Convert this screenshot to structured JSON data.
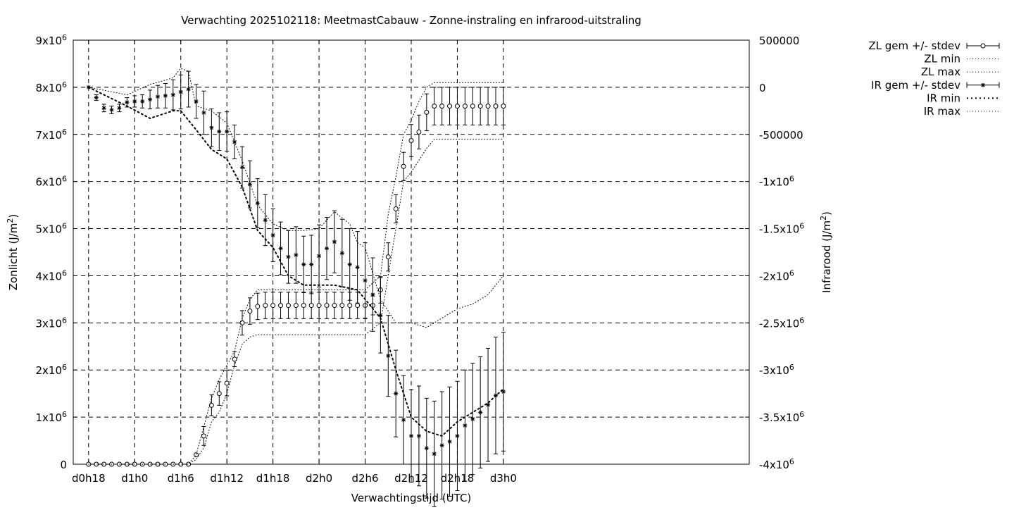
{
  "chart_data": {
    "type": "line",
    "title": "Verwachting 2025102118: MeetmastCabauw - Zonne-instraling en infrarood-uitstraling",
    "xlabel": "Verwachtingstijd (UTC)",
    "ylabel": "Zonlicht (J/m²)",
    "y2label": "Infrarood (J/m²)",
    "x_unit": "hours since d0h18",
    "xlim": [
      -2,
      86
    ],
    "ylim": [
      0,
      9000000
    ],
    "y2lim": [
      -4000000,
      500000
    ],
    "grid": true,
    "legend_position": "outside-right",
    "x_ticks": [
      {
        "v": 0,
        "label": "d0h18"
      },
      {
        "v": 6,
        "label": "d1h0"
      },
      {
        "v": 12,
        "label": "d1h6"
      },
      {
        "v": 18,
        "label": "d1h12"
      },
      {
        "v": 24,
        "label": "d1h18"
      },
      {
        "v": 30,
        "label": "d2h0"
      },
      {
        "v": 36,
        "label": "d2h6"
      },
      {
        "v": 42,
        "label": "d2h12"
      },
      {
        "v": 48,
        "label": "d2h18"
      },
      {
        "v": 54,
        "label": "d3h0"
      }
    ],
    "y_ticks": [
      {
        "v": 0,
        "base": "0",
        "exp": ""
      },
      {
        "v": 1000000,
        "base": "1x10",
        "exp": "6"
      },
      {
        "v": 2000000,
        "base": "2x10",
        "exp": "6"
      },
      {
        "v": 3000000,
        "base": "3x10",
        "exp": "6"
      },
      {
        "v": 4000000,
        "base": "4x10",
        "exp": "6"
      },
      {
        "v": 5000000,
        "base": "5x10",
        "exp": "6"
      },
      {
        "v": 6000000,
        "base": "6x10",
        "exp": "6"
      },
      {
        "v": 7000000,
        "base": "7x10",
        "exp": "6"
      },
      {
        "v": 8000000,
        "base": "8x10",
        "exp": "6"
      },
      {
        "v": 9000000,
        "base": "9x10",
        "exp": "6"
      }
    ],
    "y2_ticks": [
      {
        "v": 500000,
        "base": "500000",
        "exp": ""
      },
      {
        "v": 0,
        "base": "0",
        "exp": ""
      },
      {
        "v": -500000,
        "base": "-500000",
        "exp": ""
      },
      {
        "v": -1000000,
        "base": "-1x10",
        "exp": "6"
      },
      {
        "v": -1500000,
        "base": "-1.5x10",
        "exp": "6"
      },
      {
        "v": -2000000,
        "base": "-2x10",
        "exp": "6"
      },
      {
        "v": -2500000,
        "base": "-2.5x10",
        "exp": "6"
      },
      {
        "v": -3000000,
        "base": "-3x10",
        "exp": "6"
      },
      {
        "v": -3500000,
        "base": "-3.5x10",
        "exp": "6"
      },
      {
        "v": -4000000,
        "base": "-4x10",
        "exp": "6"
      }
    ],
    "legend": [
      {
        "label": "ZL gem +/- stdev",
        "kind": "errbar-circle"
      },
      {
        "label": "ZL min",
        "kind": "dotted-fine"
      },
      {
        "label": "ZL max",
        "kind": "dotted-fine"
      },
      {
        "label": "IR gem +/- stdev",
        "kind": "errbar-star"
      },
      {
        "label": "IR min",
        "kind": "dotted-coarse"
      },
      {
        "label": "IR max",
        "kind": "dotted-fine"
      }
    ],
    "series": [
      {
        "name": "ZL gem +/- stdev",
        "axis": "y",
        "x": [
          0,
          1,
          2,
          3,
          4,
          5,
          6,
          7,
          8,
          9,
          10,
          11,
          12,
          13,
          14,
          15,
          16,
          17,
          18,
          19,
          20,
          21,
          22,
          23,
          24,
          25,
          26,
          27,
          28,
          29,
          30,
          31,
          32,
          33,
          34,
          35,
          36,
          37,
          38,
          39,
          40,
          41,
          42,
          43,
          44,
          45,
          46,
          47,
          48,
          49,
          50,
          51,
          52,
          53,
          54
        ],
        "y": [
          0,
          0,
          0,
          0,
          0,
          0,
          0,
          0,
          0,
          0,
          0,
          0,
          0,
          0,
          200000,
          600000,
          1250000,
          1500000,
          1720000,
          2230000,
          3000000,
          3250000,
          3350000,
          3370000,
          3370000,
          3370000,
          3370000,
          3370000,
          3370000,
          3370000,
          3370000,
          3370000,
          3370000,
          3370000,
          3370000,
          3370000,
          3370000,
          3370000,
          3700000,
          4400000,
          5420000,
          6320000,
          6870000,
          7050000,
          7470000,
          7600000,
          7600000,
          7600000,
          7600000,
          7600000,
          7600000,
          7600000,
          7600000,
          7600000,
          7600000
        ],
        "err": [
          0,
          0,
          0,
          0,
          0,
          0,
          0,
          0,
          0,
          0,
          0,
          0,
          0,
          0,
          0,
          200000,
          220000,
          250000,
          270000,
          160000,
          260000,
          280000,
          280000,
          280000,
          280000,
          280000,
          280000,
          280000,
          280000,
          280000,
          280000,
          280000,
          280000,
          280000,
          280000,
          280000,
          280000,
          200000,
          280000,
          300000,
          300000,
          300000,
          340000,
          360000,
          390000,
          400000,
          400000,
          400000,
          400000,
          400000,
          400000,
          400000,
          400000,
          400000,
          400000
        ]
      },
      {
        "name": "ZL min",
        "axis": "y",
        "x": [
          0,
          13,
          14,
          15,
          16,
          17,
          18,
          19,
          20,
          21,
          22,
          24,
          30,
          36,
          38,
          41,
          42,
          43,
          44,
          45,
          46,
          48,
          50,
          52,
          54
        ],
        "y": [
          0,
          0,
          100000,
          350000,
          900000,
          1100000,
          1500000,
          2100000,
          2550000,
          2700000,
          2750000,
          2750000,
          2750000,
          2750000,
          3000000,
          6000000,
          6200000,
          6450000,
          6700000,
          6900000,
          6900000,
          6900000,
          6900000,
          6900000,
          6900000
        ]
      },
      {
        "name": "ZL max",
        "axis": "y",
        "x": [
          0,
          13,
          14,
          15,
          16,
          17,
          18,
          19,
          20,
          21,
          22,
          23,
          24,
          30,
          36,
          38,
          39,
          40,
          41,
          42,
          43,
          44,
          45,
          46,
          48,
          50,
          52,
          54
        ],
        "y": [
          0,
          0,
          200000,
          800000,
          1400000,
          1800000,
          2100000,
          2400000,
          3100000,
          3500000,
          3700000,
          3700000,
          3700000,
          3700000,
          3700000,
          4000000,
          5300000,
          6100000,
          7000000,
          7300000,
          7700000,
          8000000,
          8100000,
          8100000,
          8100000,
          8100000,
          8100000,
          8100000
        ]
      },
      {
        "name": "IR gem +/- stdev",
        "axis": "y2",
        "x": [
          0,
          1,
          2,
          3,
          4,
          5,
          6,
          7,
          8,
          9,
          10,
          11,
          12,
          13,
          14,
          15,
          16,
          17,
          18,
          19,
          20,
          21,
          22,
          23,
          24,
          25,
          26,
          27,
          28,
          29,
          30,
          31,
          32,
          33,
          34,
          35,
          36,
          37,
          38,
          39,
          40,
          41,
          42,
          43,
          44,
          45,
          46,
          47,
          48,
          49,
          50,
          51,
          52,
          53,
          54
        ],
        "y": [
          0,
          -110000,
          -220000,
          -240000,
          -220000,
          -160000,
          -150000,
          -150000,
          -130000,
          -100000,
          -90000,
          -80000,
          -50000,
          -20000,
          -150000,
          -270000,
          -430000,
          -470000,
          -470000,
          -580000,
          -850000,
          -1030000,
          -1230000,
          -1410000,
          -1570000,
          -1710000,
          -1800000,
          -1780000,
          -1880000,
          -1880000,
          -1790000,
          -1710000,
          -1640000,
          -1760000,
          -1880000,
          -1910000,
          -2050000,
          -2200000,
          -2420000,
          -2850000,
          -3250000,
          -3530000,
          -3700000,
          -3700000,
          -3830000,
          -3890000,
          -3800000,
          -3760000,
          -3700000,
          -3590000,
          -3520000,
          -3450000,
          -3370000,
          -3270000,
          -3230000
        ],
        "err": [
          0,
          30000,
          40000,
          40000,
          40000,
          50000,
          60000,
          70000,
          100000,
          120000,
          130000,
          160000,
          180000,
          190000,
          180000,
          230000,
          200000,
          200000,
          210000,
          180000,
          220000,
          250000,
          260000,
          270000,
          280000,
          280000,
          280000,
          300000,
          300000,
          310000,
          330000,
          330000,
          330000,
          360000,
          380000,
          380000,
          400000,
          390000,
          400000,
          430000,
          460000,
          470000,
          490000,
          530000,
          530000,
          560000,
          570000,
          580000,
          580000,
          590000,
          590000,
          590000,
          600000,
          620000,
          630000
        ]
      },
      {
        "name": "IR min",
        "axis": "y2",
        "x": [
          0,
          5,
          8,
          11,
          12,
          14,
          16,
          18,
          20,
          22,
          24,
          26,
          28,
          30,
          32,
          35,
          38,
          40,
          42,
          44,
          46,
          48,
          50,
          52,
          54
        ],
        "y": [
          0,
          -200000,
          -330000,
          -250000,
          -250000,
          -450000,
          -660000,
          -760000,
          -1060000,
          -1520000,
          -1700000,
          -2000000,
          -2100000,
          -2100000,
          -2100000,
          -2150000,
          -2450000,
          -3000000,
          -3500000,
          -3650000,
          -3700000,
          -3550000,
          -3450000,
          -3350000,
          -3200000
        ]
      },
      {
        "name": "IR max",
        "axis": "y2",
        "x": [
          0,
          5,
          8,
          11,
          12,
          13,
          14,
          16,
          18,
          20,
          22,
          24,
          26,
          28,
          30,
          32,
          34,
          35,
          36,
          38,
          40,
          42,
          44,
          46,
          48,
          50,
          52,
          54
        ],
        "y": [
          0,
          -80000,
          30000,
          100000,
          200000,
          170000,
          -200000,
          -250000,
          -380000,
          -780000,
          -1250000,
          -1450000,
          -1520000,
          -1520000,
          -1500000,
          -1320000,
          -1450000,
          -1650000,
          -1700000,
          -2250000,
          -2500000,
          -2500000,
          -2550000,
          -2450000,
          -2350000,
          -2300000,
          -2200000,
          -2000000
        ]
      }
    ]
  }
}
